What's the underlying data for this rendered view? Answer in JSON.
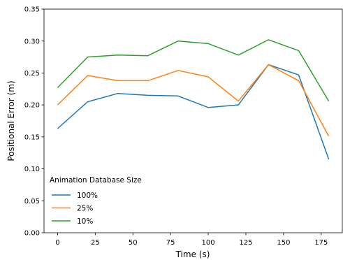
{
  "chart_data": {
    "type": "line",
    "title": "",
    "xlabel": "Time (s)",
    "ylabel": "Positional Error (m)",
    "xlim": [
      -9,
      189
    ],
    "ylim": [
      0.0,
      0.35
    ],
    "xticks": [
      0,
      25,
      50,
      75,
      100,
      125,
      150,
      175
    ],
    "yticks": [
      0.0,
      0.05,
      0.1,
      0.15,
      0.2,
      0.25,
      0.3,
      0.35
    ],
    "ytick_labels": [
      "0.00",
      "0.05",
      "0.10",
      "0.15",
      "0.20",
      "0.25",
      "0.30",
      "0.35"
    ],
    "grid": false,
    "legend": {
      "title": "Animation Database Size",
      "placement": "center-left"
    },
    "x": [
      0,
      20,
      40,
      60,
      80,
      100,
      120,
      140,
      160,
      180
    ],
    "series": [
      {
        "name": "100%",
        "color": "#1f77b4",
        "values": [
          0.163,
          0.205,
          0.218,
          0.215,
          0.214,
          0.196,
          0.2,
          0.263,
          0.247,
          0.115
        ]
      },
      {
        "name": "25%",
        "color": "#ff7f0e",
        "values": [
          0.2,
          0.246,
          0.238,
          0.238,
          0.254,
          0.244,
          0.206,
          0.263,
          0.238,
          0.151
        ]
      },
      {
        "name": "10%",
        "color": "#2ca02c",
        "values": [
          0.227,
          0.275,
          0.278,
          0.277,
          0.3,
          0.296,
          0.278,
          0.302,
          0.285,
          0.206
        ]
      }
    ]
  }
}
